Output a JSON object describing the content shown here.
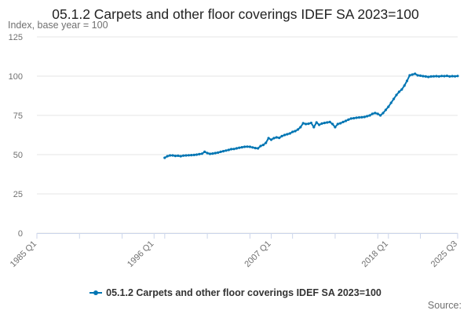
{
  "chart_data": {
    "type": "line",
    "title": "05.1.2 Carpets and other floor coverings IDEF SA 2023=100",
    "subtitle": "Index, base year = 100",
    "source_label": "Source:",
    "x_tick_labels": [
      "1985 Q1",
      "1996 Q1",
      "2007 Q1",
      "2018 Q1",
      "2025 Q3"
    ],
    "x_tick_years": [
      1985.0,
      1996.0,
      2007.0,
      2018.0,
      2024.5
    ],
    "xlim": [
      1985.0,
      2024.5
    ],
    "x_unit": "year",
    "ylim": [
      0,
      125
    ],
    "y_ticks": [
      0,
      25,
      50,
      75,
      100,
      125
    ],
    "grid": true,
    "legend_position": "bottom",
    "colors": {
      "series": "#0075b3",
      "grid": "#e6e6e6",
      "axis": "#ccd6eb",
      "text": "#707070"
    },
    "series": [
      {
        "name": "05.1.2 Carpets and other floor coverings IDEF SA 2023=100",
        "x": [
          1997.0,
          1997.25,
          1997.5,
          1997.75,
          1998.0,
          1998.25,
          1998.5,
          1998.75,
          1999.0,
          1999.25,
          1999.5,
          1999.75,
          2000.0,
          2000.25,
          2000.5,
          2000.75,
          2001.0,
          2001.25,
          2001.5,
          2001.75,
          2002.0,
          2002.25,
          2002.5,
          2002.75,
          2003.0,
          2003.25,
          2003.5,
          2003.75,
          2004.0,
          2004.25,
          2004.5,
          2004.75,
          2005.0,
          2005.25,
          2005.5,
          2005.75,
          2006.0,
          2006.25,
          2006.5,
          2006.75,
          2007.0,
          2007.25,
          2007.5,
          2007.75,
          2008.0,
          2008.25,
          2008.5,
          2008.75,
          2009.0,
          2009.25,
          2009.5,
          2009.75,
          2010.0,
          2010.25,
          2010.5,
          2010.75,
          2011.0,
          2011.25,
          2011.5,
          2011.75,
          2012.0,
          2012.25,
          2012.5,
          2012.75,
          2013.0,
          2013.25,
          2013.5,
          2013.75,
          2014.0,
          2014.25,
          2014.5,
          2014.75,
          2015.0,
          2015.25,
          2015.5,
          2015.75,
          2016.0,
          2016.25,
          2016.5,
          2016.75,
          2017.0,
          2017.25,
          2017.5,
          2017.75,
          2018.0,
          2018.25,
          2018.5,
          2018.75,
          2019.0,
          2019.25,
          2019.5,
          2019.75,
          2020.0,
          2020.25,
          2020.5,
          2020.75,
          2021.0,
          2021.25,
          2021.5,
          2021.75,
          2022.0,
          2022.25,
          2022.5,
          2022.75,
          2023.0,
          2023.25,
          2023.5,
          2023.75,
          2024.0,
          2024.25,
          2024.5
        ],
        "y": [
          48.0,
          49.0,
          49.5,
          49.5,
          49.2,
          49.3,
          49.0,
          49.4,
          49.5,
          49.6,
          49.7,
          49.8,
          50.0,
          50.3,
          50.6,
          51.8,
          51.0,
          50.5,
          50.7,
          51.0,
          51.3,
          51.8,
          52.2,
          52.6,
          53.0,
          53.5,
          53.6,
          54.0,
          54.4,
          54.7,
          55.0,
          55.1,
          55.0,
          54.6,
          54.2,
          54.0,
          55.5,
          56.2,
          57.5,
          60.5,
          59.5,
          60.5,
          61.0,
          60.7,
          61.8,
          62.5,
          63.0,
          63.5,
          64.5,
          65.0,
          66.0,
          67.5,
          70.0,
          69.5,
          69.7,
          70.2,
          67.5,
          70.5,
          69.0,
          69.8,
          70.2,
          70.5,
          70.8,
          69.5,
          67.5,
          69.5,
          70.0,
          70.8,
          71.5,
          72.3,
          73.0,
          73.2,
          73.5,
          73.7,
          73.8,
          74.0,
          74.5,
          75.0,
          76.0,
          76.5,
          76.0,
          75.0,
          76.5,
          78.5,
          80.5,
          83.0,
          85.5,
          88.0,
          90.0,
          91.5,
          94.0,
          97.0,
          100.5,
          101.0,
          101.5,
          100.5,
          100.3,
          100.0,
          99.8,
          99.5,
          99.8,
          99.9,
          100.0,
          99.8,
          100.1,
          100.0,
          100.2,
          99.8,
          100.0,
          99.9,
          100.1
        ]
      }
    ]
  }
}
